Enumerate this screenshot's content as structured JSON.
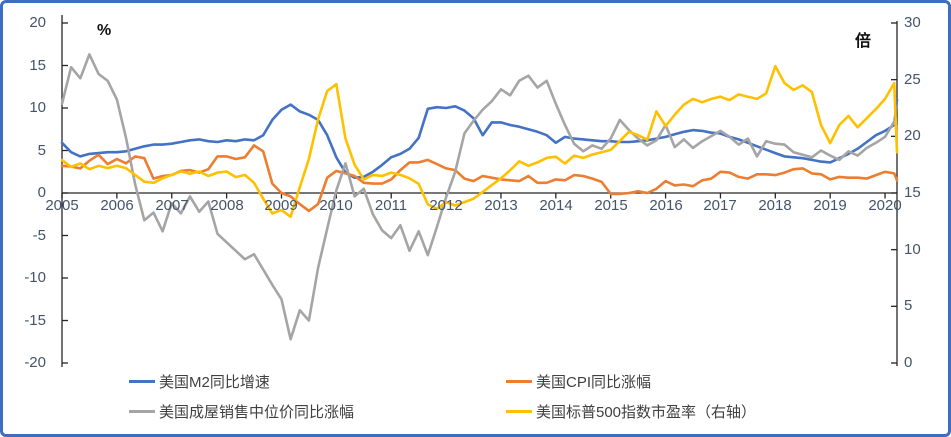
{
  "window": {
    "background": "#FFFFFF",
    "border_color": "#3D6EBF"
  },
  "chart_data": {
    "type": "line",
    "title": "",
    "grid": false,
    "legend_position": "bottom-two-columns",
    "left_axis": {
      "unit": "%",
      "min": -20,
      "max": 20,
      "step": 5,
      "tick_values": [
        20,
        15,
        10,
        5,
        0,
        -5,
        -10,
        -15,
        -20
      ],
      "tick_labels": [
        "20",
        "15",
        "10",
        "5",
        "0",
        "-5",
        "-10",
        "-15",
        "-20"
      ]
    },
    "right_axis": {
      "unit": "倍",
      "min": 0,
      "max": 30,
      "step": 5,
      "tick_values": [
        30,
        25,
        20,
        15,
        10,
        5,
        0
      ],
      "tick_labels": [
        "30",
        "25",
        "20",
        "15",
        "10",
        "5",
        "0"
      ]
    },
    "x_axis": {
      "labels": [
        "2005",
        "2006",
        "2007",
        "2008",
        "2009",
        "2010",
        "2011",
        "2012",
        "2013",
        "2014",
        "2015",
        "2016",
        "2017",
        "2018",
        "2019",
        "2020"
      ],
      "start_year": 2005,
      "end_year_fraction": 2020.33,
      "points_per_year": 6
    },
    "series": [
      {
        "name": "美国M2同比增速",
        "color": "#4472C4",
        "axis": "left",
        "values": [
          5.9,
          4.8,
          4.3,
          4.6,
          4.7,
          4.8,
          4.8,
          4.9,
          5.2,
          5.5,
          5.7,
          5.7,
          5.8,
          6.0,
          6.2,
          6.3,
          6.1,
          6.0,
          6.2,
          6.1,
          6.3,
          6.2,
          6.8,
          8.6,
          9.8,
          10.4,
          9.6,
          9.2,
          8.6,
          6.8,
          4.2,
          2.4,
          1.8,
          1.9,
          2.5,
          3.3,
          4.2,
          4.6,
          5.2,
          6.5,
          9.9,
          10.1,
          10.0,
          10.2,
          9.7,
          8.8,
          6.8,
          8.3,
          8.3,
          8.0,
          7.8,
          7.5,
          7.2,
          6.8,
          5.9,
          6.6,
          6.4,
          6.3,
          6.2,
          6.1,
          6.1,
          6.0,
          6.0,
          6.1,
          6.2,
          6.4,
          6.6,
          6.9,
          7.2,
          7.4,
          7.3,
          7.1,
          7.0,
          6.6,
          6.3,
          5.9,
          5.5,
          5.1,
          4.7,
          4.3,
          4.2,
          4.1,
          3.9,
          3.7,
          3.6,
          4.1,
          4.6,
          5.2,
          6.0,
          6.8,
          7.3,
          8.0,
          11.0
        ]
      },
      {
        "name": "美国CPI同比涨幅",
        "color": "#ED7D31",
        "axis": "left",
        "values": [
          3.2,
          3.1,
          2.9,
          3.8,
          4.5,
          3.4,
          4.0,
          3.5,
          4.3,
          4.1,
          1.7,
          2.0,
          2.1,
          2.6,
          2.7,
          2.4,
          2.8,
          4.3,
          4.3,
          4.0,
          4.2,
          5.6,
          4.9,
          1.1,
          0.0,
          -0.4,
          -1.3,
          -2.1,
          -1.3,
          1.8,
          2.6,
          2.3,
          2.0,
          1.2,
          1.1,
          1.1,
          1.6,
          2.7,
          3.6,
          3.6,
          3.9,
          3.4,
          2.9,
          2.7,
          1.7,
          1.4,
          2.0,
          1.8,
          1.6,
          1.5,
          1.4,
          2.0,
          1.2,
          1.2,
          1.6,
          1.5,
          2.1,
          2.0,
          1.7,
          1.3,
          -0.1,
          -0.1,
          0.0,
          0.2,
          0.0,
          0.5,
          1.4,
          0.9,
          1.0,
          0.8,
          1.5,
          1.7,
          2.5,
          2.4,
          1.9,
          1.7,
          2.2,
          2.2,
          2.1,
          2.4,
          2.8,
          2.9,
          2.3,
          2.2,
          1.6,
          1.9,
          1.8,
          1.8,
          1.7,
          2.1,
          2.5,
          2.3,
          1.5
        ]
      },
      {
        "name": "美国成屋销售中位价同比涨幅",
        "color": "#A5A5A5",
        "axis": "left",
        "values": [
          10.5,
          14.8,
          13.5,
          16.3,
          14.0,
          13.2,
          11.0,
          6.5,
          1.0,
          -3.2,
          -2.3,
          -4.5,
          -1.2,
          -2.4,
          -0.4,
          -2.2,
          -1.0,
          -4.8,
          -5.8,
          -6.8,
          -7.8,
          -7.2,
          -9.0,
          -10.8,
          -12.5,
          -17.2,
          -13.8,
          -15.0,
          -8.8,
          -4.2,
          0.3,
          3.5,
          -0.4,
          0.5,
          -2.5,
          -4.4,
          -5.3,
          -3.8,
          -6.8,
          -4.5,
          -7.3,
          -4.0,
          -0.5,
          2.5,
          7.0,
          8.5,
          9.8,
          10.8,
          12.2,
          11.5,
          13.2,
          13.8,
          12.4,
          13.2,
          10.5,
          8.0,
          5.8,
          4.9,
          5.6,
          5.2,
          6.4,
          8.6,
          7.4,
          6.4,
          5.6,
          6.2,
          8.0,
          5.4,
          6.3,
          5.3,
          6.1,
          6.7,
          7.3,
          6.6,
          5.7,
          6.4,
          4.3,
          6.1,
          5.8,
          5.7,
          4.8,
          4.5,
          4.2,
          5.0,
          4.4,
          3.9,
          4.9,
          4.4,
          5.3,
          5.9,
          6.6,
          8.4,
          7.6
        ]
      },
      {
        "name": "美国标普500指数市盈率（右轴）",
        "color": "#FFC000",
        "axis": "right",
        "values": [
          17.9,
          17.3,
          17.6,
          17.1,
          17.4,
          17.2,
          17.4,
          17.2,
          16.6,
          16.0,
          15.9,
          16.3,
          16.6,
          16.9,
          16.7,
          16.9,
          16.5,
          16.8,
          16.9,
          16.4,
          16.6,
          15.9,
          14.5,
          13.2,
          13.5,
          12.9,
          15.5,
          18.0,
          21.5,
          24.0,
          24.6,
          19.8,
          17.5,
          16.2,
          16.6,
          16.5,
          16.8,
          16.6,
          16.3,
          15.8,
          14.0,
          13.6,
          14.2,
          13.9,
          14.2,
          14.5,
          15.1,
          15.7,
          16.3,
          17.0,
          17.8,
          17.4,
          17.7,
          18.1,
          18.2,
          17.6,
          18.3,
          18.1,
          18.4,
          18.6,
          18.8,
          19.6,
          20.4,
          20.1,
          19.7,
          22.2,
          20.9,
          21.9,
          22.8,
          23.3,
          23.0,
          23.3,
          23.5,
          23.2,
          23.7,
          23.5,
          23.3,
          23.8,
          26.2,
          24.7,
          24.1,
          24.5,
          23.9,
          21.0,
          19.4,
          21.0,
          21.8,
          20.8,
          21.6,
          22.4,
          23.3,
          24.7,
          18.6
        ]
      }
    ]
  }
}
